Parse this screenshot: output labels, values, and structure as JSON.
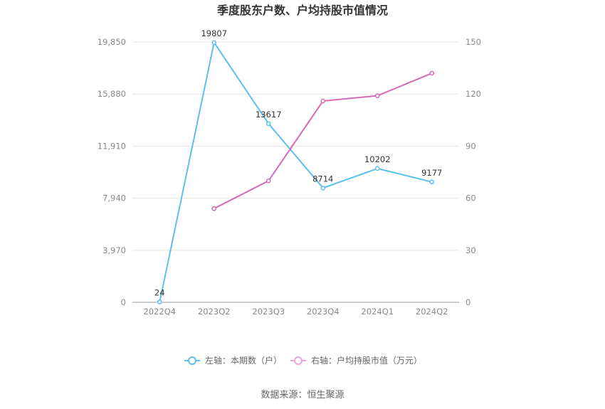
{
  "chart_data": {
    "type": "line",
    "title": "季度股东户数、户均持股市值情况",
    "categories": [
      "2022Q4",
      "2023Q2",
      "2023Q3",
      "2023Q4",
      "2024Q1",
      "2024Q2"
    ],
    "left_axis": {
      "ylim": [
        0,
        19850
      ],
      "ticks": [
        "0",
        "3,970",
        "7,940",
        "11,910",
        "15,880",
        "19,850"
      ]
    },
    "right_axis": {
      "ylim": [
        0,
        150
      ],
      "ticks": [
        "0",
        "30",
        "60",
        "90",
        "120",
        "150"
      ]
    },
    "series": [
      {
        "name": "左轴：本期数（户）",
        "axis": "left",
        "color": "#5bc0ee",
        "values": [
          24,
          19807,
          13617,
          8714,
          10202,
          9177
        ],
        "labels": [
          "24",
          "19807",
          "13617",
          "8714",
          "10202",
          "9177"
        ]
      },
      {
        "name": "右轴：户均持股市值（万元）",
        "axis": "right",
        "color": "#d46bb4",
        "values": [
          null,
          54,
          70,
          116,
          119,
          132
        ]
      }
    ],
    "grid": true,
    "legend_position": "bottom"
  },
  "source": "数据来源：恒生聚源"
}
